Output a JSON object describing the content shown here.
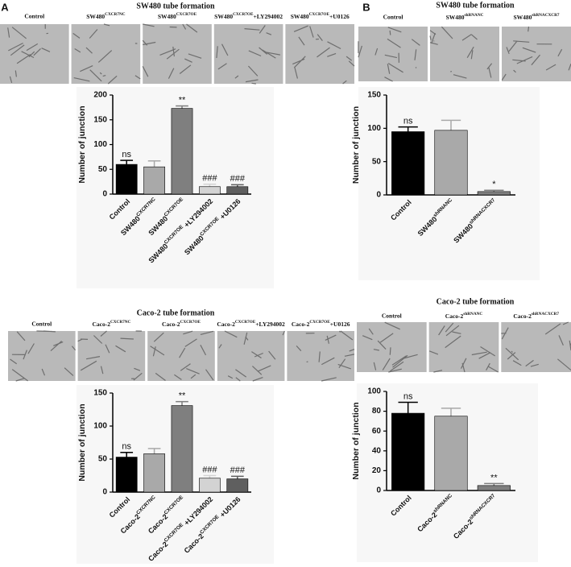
{
  "chart_data": [
    {
      "type": "bar",
      "panel": "A",
      "title": "SW480 tube formation",
      "image_labels": [
        "Control",
        {
          "text": "SW480",
          "sup": "CXCR7NC"
        },
        {
          "text": "SW480",
          "sup": "CXCR7OE"
        },
        {
          "text": "SW480",
          "sup": "CXCR7OE",
          "suffix": "+LY294002"
        },
        {
          "text": "SW480",
          "sup": "CXCR7OE",
          "suffix": "+U0126"
        }
      ],
      "ylabel": "Number of junction",
      "categories": [
        "Control",
        {
          "text": "SW480",
          "sup": "CXCR7NC"
        },
        {
          "text": "SW480",
          "sup": "CXCR7OE"
        },
        {
          "text": "SW480",
          "sup": "CXCR7OE",
          "suffix": " +LY294002"
        },
        {
          "text": "SW480",
          "sup": "CXCR7OE",
          "suffix": " +U0126"
        }
      ],
      "values": [
        60,
        55,
        173,
        15,
        15
      ],
      "errors": [
        8,
        12,
        5,
        5,
        4
      ],
      "annotations": [
        "ns",
        null,
        "**",
        "###",
        "###"
      ],
      "colors": [
        "#000000",
        "#a9a9a9",
        "#7f7f7f",
        "#d3d3d3",
        "#5f5f5f"
      ],
      "ylim": [
        0,
        200
      ],
      "yticks": [
        0,
        50,
        100,
        150,
        200
      ]
    },
    {
      "type": "bar",
      "panel": "B",
      "title": "SW480 tube formation",
      "image_labels": [
        "Control",
        {
          "text": "SW480",
          "sup": "shRNANC"
        },
        {
          "text": "SW480",
          "sup": "shRNACXCR7"
        }
      ],
      "ylabel": "Number of junction",
      "categories": [
        "Control",
        {
          "text": "SW480",
          "sup": "shRNANC"
        },
        {
          "text": "SW480",
          "sup": "shRNACXCR7"
        }
      ],
      "values": [
        95,
        97,
        5
      ],
      "errors": [
        7,
        15,
        2
      ],
      "annotations": [
        "ns",
        null,
        "*"
      ],
      "colors": [
        "#000000",
        "#a9a9a9",
        "#7f7f7f"
      ],
      "ylim": [
        0,
        150
      ],
      "yticks": [
        0,
        50,
        100,
        150
      ]
    },
    {
      "type": "bar",
      "title": "Caco-2 tube formation",
      "image_labels": [
        "Control",
        {
          "text": "Caco-2",
          "sup": "CXCR7NC"
        },
        {
          "text": "Caco-2",
          "sup": "CXCR7OE"
        },
        {
          "text": "Caco-2",
          "sup": "CXCR7OE",
          "suffix": "+LY294002"
        },
        {
          "text": "Caco-2",
          "sup": "CXCR7OE",
          "suffix": "+U0126"
        }
      ],
      "ylabel": "Number of junction",
      "categories": [
        "Control",
        {
          "text": "Caco-2",
          "sup": "CXCR7NC"
        },
        {
          "text": "Caco-2",
          "sup": "CXCR7OE"
        },
        {
          "text": "Caco-2",
          "sup": "CXCR7OE",
          "suffix": " +LY294002"
        },
        {
          "text": "Caco-2",
          "sup": "CXCR7OE",
          "suffix": " +U0126"
        }
      ],
      "values": [
        53,
        58,
        131,
        21,
        20
      ],
      "errors": [
        7,
        8,
        6,
        4,
        4
      ],
      "annotations": [
        "ns",
        null,
        "**",
        "###",
        "###"
      ],
      "colors": [
        "#000000",
        "#a9a9a9",
        "#7f7f7f",
        "#d3d3d3",
        "#5f5f5f"
      ],
      "ylim": [
        0,
        150
      ],
      "yticks": [
        0,
        50,
        100,
        150
      ]
    },
    {
      "type": "bar",
      "title": "Caco-2 tube formation",
      "image_labels": [
        "Control",
        {
          "text": "Caco-2",
          "sup": "shRNANC"
        },
        {
          "text": "Caco-2",
          "sup": "shRNACXCR7"
        }
      ],
      "ylabel": "Number of junction",
      "categories": [
        "Control",
        {
          "text": "Caco-2",
          "sup": "shRNANC"
        },
        {
          "text": "Caco-2",
          "sup": "shRNACXCR7"
        }
      ],
      "values": [
        78,
        75,
        5
      ],
      "errors": [
        11,
        8,
        2
      ],
      "annotations": [
        "ns",
        null,
        "**"
      ],
      "colors": [
        "#000000",
        "#a9a9a9",
        "#7f7f7f"
      ],
      "ylim": [
        0,
        100
      ],
      "yticks": [
        0,
        20,
        40,
        60,
        80,
        100
      ]
    }
  ]
}
